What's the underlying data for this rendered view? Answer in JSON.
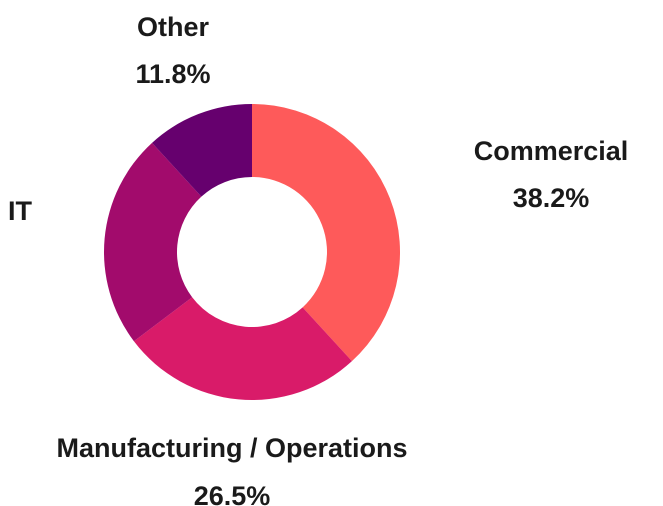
{
  "chart_data": {
    "type": "pie",
    "donut": true,
    "slices": [
      {
        "label": "Commercial",
        "value": 38.2,
        "display_value": "38.2%",
        "color": "#fe5a5a"
      },
      {
        "label": "Manufacturing / Operations",
        "value": 26.5,
        "display_value": "26.5%",
        "color": "#d91b69"
      },
      {
        "label": "IT",
        "value": 23.5,
        "display_value": "",
        "color": "#a20b6c"
      },
      {
        "label": "Other",
        "value": 11.8,
        "display_value": "11.8%",
        "color": "#66006e"
      }
    ],
    "start": "top",
    "direction": "clockwise",
    "legend": "none",
    "title": ""
  }
}
